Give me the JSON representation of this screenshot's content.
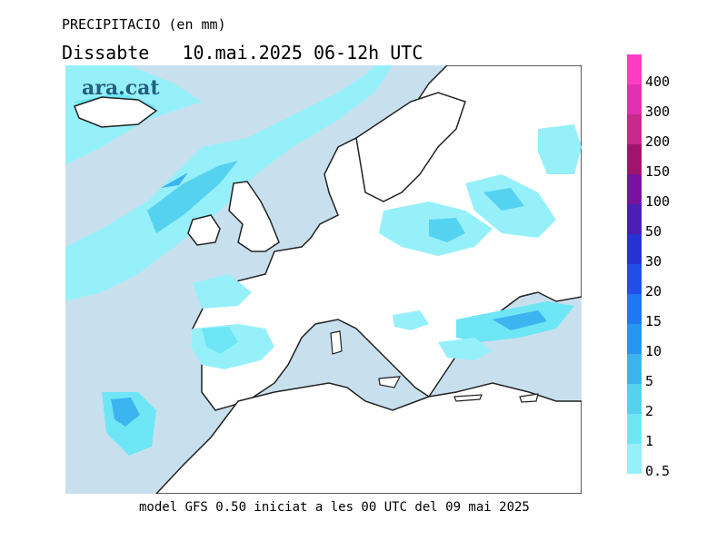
{
  "header": {
    "title": "PRECIPITACIO (en mm)",
    "subtitle": "Dissabte   10.mai.2025 06-12h UTC"
  },
  "logo": "ara.cat",
  "footer": "model GFS 0.50 iniciat a les 00 UTC del 09 mai 2025",
  "legend": {
    "labels": [
      "400",
      "300",
      "200",
      "150",
      "100",
      "50",
      "30",
      "20",
      "15",
      "10",
      "5",
      "2",
      "1",
      "0.5"
    ],
    "colors": [
      "#ff3cc8",
      "#e130b4",
      "#c8288c",
      "#a0146e",
      "#7a12a0",
      "#4b1eb4",
      "#2832d2",
      "#1e50e6",
      "#1e78f0",
      "#2896f0",
      "#3cb4f0",
      "#55d2f0",
      "#6ee6f5",
      "#96f0fa"
    ]
  },
  "map": {
    "sea_color": "#c8e0ee",
    "land_color": "#ffffff",
    "coast_color": "#222222"
  }
}
